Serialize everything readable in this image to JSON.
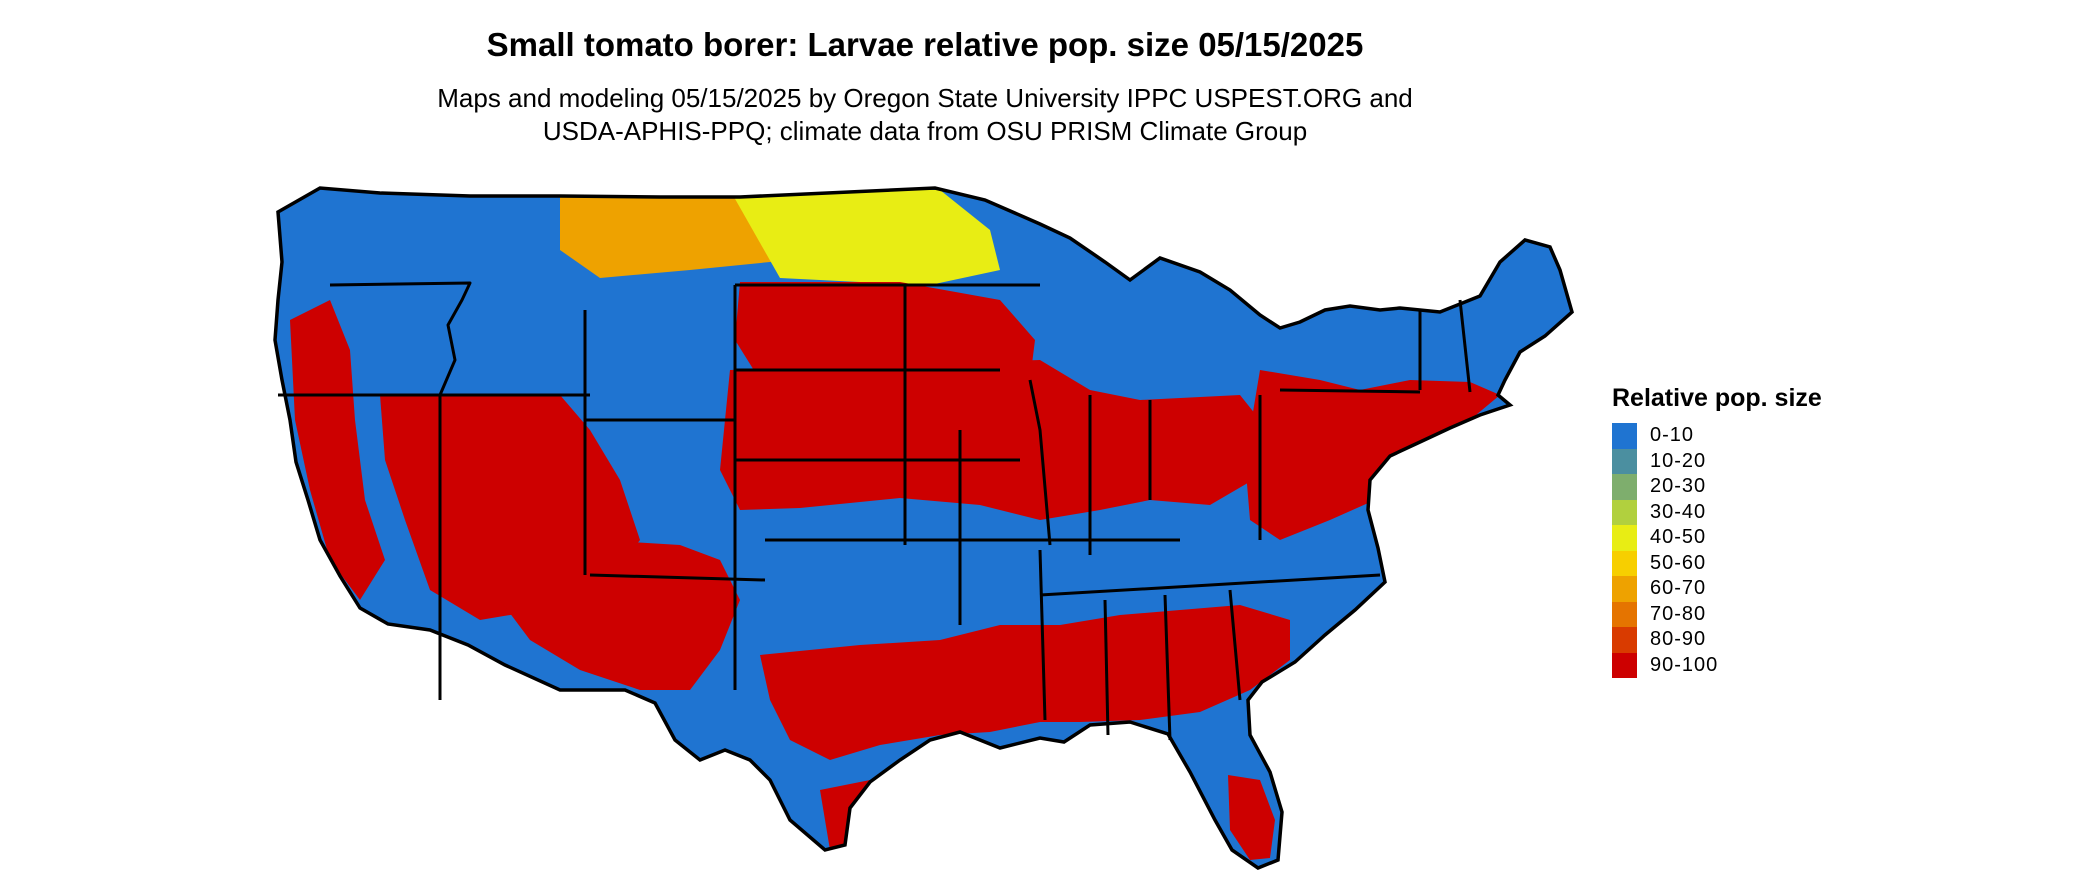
{
  "title": "Small tomato borer: Larvae relative pop. size 05/15/2025",
  "subtitle_line1": "Maps and modeling 05/15/2025 by Oregon State University IPPC USPEST.ORG and",
  "subtitle_line2": "USDA-APHIS-PPQ; climate data from OSU PRISM Climate Group",
  "legend": {
    "title": "Relative pop. size",
    "items": [
      {
        "label": "0-10",
        "color": "#1f74d1"
      },
      {
        "label": "10-20",
        "color": "#4b8fa0"
      },
      {
        "label": "20-30",
        "color": "#7eae6d"
      },
      {
        "label": "30-40",
        "color": "#b1d03e"
      },
      {
        "label": "40-50",
        "color": "#e8ed14"
      },
      {
        "label": "50-60",
        "color": "#f7cf00"
      },
      {
        "label": "60-70",
        "color": "#eea200"
      },
      {
        "label": "70-80",
        "color": "#e57400"
      },
      {
        "label": "80-90",
        "color": "#d93b00"
      },
      {
        "label": "90-100",
        "color": "#cd0000"
      }
    ]
  },
  "map_regions": [
    {
      "region": "pacific-northwest-coast",
      "class": "0-10"
    },
    {
      "region": "northern-rockies",
      "class": "0-10"
    },
    {
      "region": "northern-plains-montana",
      "class": "60-70"
    },
    {
      "region": "north-dakota",
      "class": "40-50"
    },
    {
      "region": "great-lakes-north",
      "class": "0-10"
    },
    {
      "region": "new-england",
      "class": "0-10"
    },
    {
      "region": "upper-plains-south-dakota",
      "class": "90-100"
    },
    {
      "region": "corn-belt",
      "class": "90-100"
    },
    {
      "region": "mid-atlantic",
      "class": "90-100"
    },
    {
      "region": "great-basin",
      "class": "90-100"
    },
    {
      "region": "california-central",
      "class": "90-100"
    },
    {
      "region": "california-sierra-coast",
      "class": "0-10"
    },
    {
      "region": "southern-rockies",
      "class": "0-10"
    },
    {
      "region": "southwest-desert",
      "class": "90-100"
    },
    {
      "region": "southern-plains-oklahoma",
      "class": "0-10"
    },
    {
      "region": "tennessee-kentucky",
      "class": "0-10"
    },
    {
      "region": "gulf-states",
      "class": "90-100"
    },
    {
      "region": "texas",
      "class": "0-10"
    },
    {
      "region": "south-texas",
      "class": "90-100"
    },
    {
      "region": "florida-north",
      "class": "0-10"
    },
    {
      "region": "florida-south",
      "class": "90-100"
    }
  ]
}
